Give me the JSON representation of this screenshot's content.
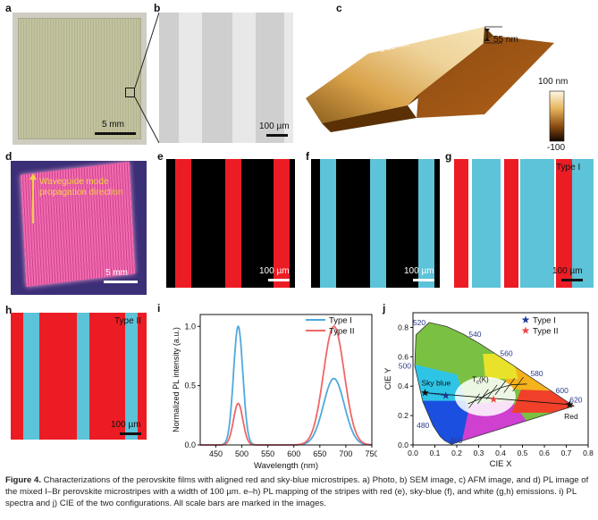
{
  "panels": {
    "a": {
      "label": "a",
      "scale_text": "5 mm"
    },
    "b": {
      "label": "b",
      "scale_text": "100 µm"
    },
    "c": {
      "label": "c",
      "roughness_label": "Roughness:",
      "roughness_value": "1.38 nm",
      "height_text": "55 nm",
      "colorbar_max": "100 nm",
      "colorbar_min": "-100"
    },
    "d": {
      "label": "d",
      "arrow_text_1": "Waveguide mode",
      "arrow_text_2": "propagation direction",
      "scale_text": "5 mm"
    },
    "e": {
      "label": "e",
      "scale_text": "100 µm"
    },
    "f": {
      "label": "f",
      "scale_text": "100 µm"
    },
    "g": {
      "label": "g",
      "type_text": "Type I",
      "scale_text": "100 µm"
    },
    "h": {
      "label": "h",
      "type_text": "Type II",
      "scale_text": "100 µm"
    },
    "i": {
      "label": "i"
    },
    "j": {
      "label": "j"
    }
  },
  "colors": {
    "red": "#ec1c24",
    "sky_blue": "#5dc3d8",
    "type1": "#4fa9dd",
    "type2": "#ef6767"
  },
  "chart_data": [
    {
      "panel": "i",
      "type": "line",
      "xlabel": "Wavelength (nm)",
      "ylabel": "Normalized PL intensity (a.u.)",
      "xlim": [
        420,
        750
      ],
      "ylim": [
        0,
        1.1
      ],
      "xticks": [
        "450",
        "500",
        "550",
        "600",
        "650",
        "700",
        "750"
      ],
      "yticks": [
        "0.0",
        "0.5",
        "1.0"
      ],
      "legend_position": "top-right",
      "series": [
        {
          "name": "Type I",
          "color": "#4fa9dd",
          "peaks": [
            {
              "center": 493,
              "height": 1.0,
              "sigma": 9
            },
            {
              "center": 677,
              "height": 0.56,
              "sigma": 20
            }
          ]
        },
        {
          "name": "Type II",
          "color": "#ef6767",
          "peaks": [
            {
              "center": 493,
              "height": 0.35,
              "sigma": 9
            },
            {
              "center": 677,
              "height": 1.0,
              "sigma": 20
            }
          ]
        }
      ]
    },
    {
      "panel": "j",
      "type": "scatter",
      "xlabel": "CIE X",
      "ylabel": "CIE Y",
      "xlim": [
        0.0,
        0.8
      ],
      "ylim": [
        0.0,
        0.9
      ],
      "xticks": [
        "0.0",
        "0.1",
        "0.2",
        "0.3",
        "0.4",
        "0.5",
        "0.6",
        "0.7",
        "0.8"
      ],
      "yticks": [
        "0.0",
        "0.2",
        "0.4",
        "0.6",
        "0.8"
      ],
      "legend_position": "top-right",
      "wavelength_labels": [
        {
          "text": "520",
          "x": 0.074,
          "y": 0.834
        },
        {
          "text": "540",
          "x": 0.23,
          "y": 0.754
        },
        {
          "text": "560",
          "x": 0.373,
          "y": 0.624
        },
        {
          "text": "580",
          "x": 0.512,
          "y": 0.487
        },
        {
          "text": "600",
          "x": 0.627,
          "y": 0.372
        },
        {
          "text": "620",
          "x": 0.691,
          "y": 0.308
        },
        {
          "text": "500",
          "x": 0.008,
          "y": 0.538
        },
        {
          "text": "480",
          "x": 0.091,
          "y": 0.133
        },
        {
          "text": "460",
          "x": 0.144,
          "y": 0.03
        }
      ],
      "points": [
        {
          "name": "Type I",
          "x": 0.15,
          "y": 0.335,
          "color": "#1f3a93",
          "marker": "star"
        },
        {
          "name": "Type II",
          "x": 0.368,
          "y": 0.31,
          "color": "#ef4444",
          "marker": "star"
        },
        {
          "name": "Sky blue",
          "x": 0.055,
          "y": 0.355,
          "color": "#111111",
          "marker": "star"
        },
        {
          "name": "Red",
          "x": 0.715,
          "y": 0.275,
          "color": "#111111",
          "marker": "star"
        }
      ],
      "point_labels": {
        "sky_blue": "Sky blue",
        "red": "Red"
      },
      "planckian_label": "T",
      "planckian_sub": "c",
      "planckian_suffix": "(K)"
    }
  ],
  "caption": {
    "figure_number": "Figure 4.",
    "text": " Characterizations of the perovskite films with aligned red and sky-blue microstripes. a) Photo, b) SEM image, c) AFM image, and d) PL image of the mixed I–Br perovskite microstripes with a width of 100 µm. e–h) PL mapping of the stripes with red (e), sky-blue (f), and white (g,h) emissions. i) PL spectra and j) CIE of the two configurations. All scale bars are marked in the images."
  }
}
